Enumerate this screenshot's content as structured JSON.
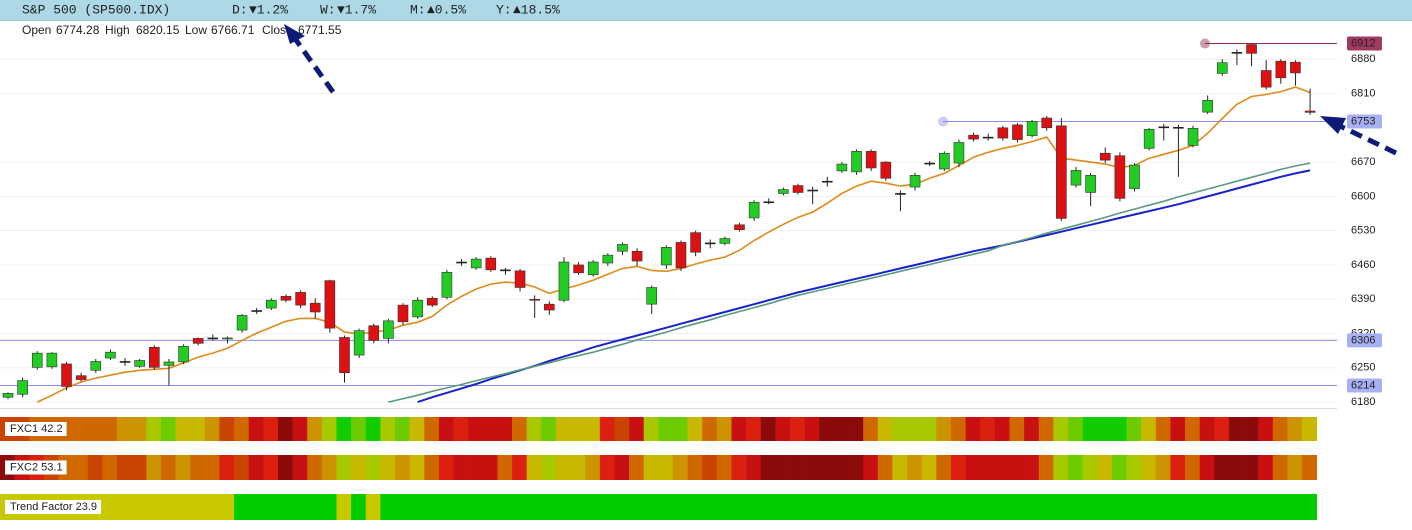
{
  "header": {
    "title": "S&P 500 (SP500.IDX)",
    "changes": [
      {
        "label": "D:",
        "value": "▼1.2%",
        "color": "#c00000"
      },
      {
        "label": "W:",
        "value": "▼1.7%",
        "color": "#c00000"
      },
      {
        "label": "M:",
        "value": "▲0.5%",
        "color": "#008a00"
      },
      {
        "label": "Y:",
        "value": "▲18.5%",
        "color": "#008a00"
      }
    ]
  },
  "ohlc": [
    {
      "label": "Open",
      "value": 6774.28
    },
    {
      "label": "High",
      "value": 6820.15
    },
    {
      "label": "Low",
      "value": 6766.71
    },
    {
      "label": "Close",
      "value": 6771.55
    }
  ],
  "chart_data": {
    "type": "candlestick",
    "ylim": [
      6168,
      6956
    ],
    "yticks": [
      6180,
      6250,
      6320,
      6390,
      6460,
      6530,
      6600,
      6670,
      6810,
      6880
    ],
    "grid": true,
    "up_color": "#22cc22",
    "down_color": "#dd1111",
    "open": [
      6190,
      6196,
      6251,
      6252,
      6258,
      6234,
      6245,
      6270,
      6262,
      6253,
      6292,
      6255,
      6262,
      6310,
      6310,
      6309,
      6327,
      6366,
      6372,
      6396,
      6404,
      6382,
      6428,
      6312,
      6276,
      6336,
      6310,
      6378,
      6354,
      6392,
      6394,
      6465,
      6454,
      6474,
      6450,
      6448,
      6390,
      6380,
      6388,
      6460,
      6440,
      6464,
      6488,
      6488,
      6380,
      6460,
      6506,
      6526,
      6504,
      6504,
      6542,
      6556,
      6588,
      6606,
      6622,
      6612,
      6630,
      6652,
      6650,
      6692,
      6670,
      6606,
      6619,
      6667,
      6656,
      6668,
      6725,
      6720,
      6740,
      6746,
      6724,
      6760,
      6744,
      6623,
      6608,
      6688,
      6683,
      6616,
      6698,
      6741,
      6741,
      6704,
      6772,
      6851,
      6893,
      6910,
      6857,
      6876,
      6874,
      6774.28
    ],
    "high": [
      6200,
      6230,
      6284,
      6282,
      6262,
      6240,
      6268,
      6288,
      6270,
      6268,
      6296,
      6268,
      6298,
      6312,
      6318,
      6314,
      6360,
      6372,
      6392,
      6400,
      6408,
      6392,
      6430,
      6316,
      6330,
      6340,
      6350,
      6382,
      6394,
      6396,
      6450,
      6472,
      6476,
      6478,
      6454,
      6452,
      6398,
      6386,
      6476,
      6466,
      6470,
      6484,
      6506,
      6494,
      6418,
      6500,
      6510,
      6530,
      6512,
      6518,
      6546,
      6592,
      6596,
      6618,
      6626,
      6620,
      6640,
      6670,
      6696,
      6696,
      6672,
      6612,
      6648,
      6672,
      6692,
      6716,
      6730,
      6728,
      6744,
      6750,
      6756,
      6764,
      6760,
      6660,
      6648,
      6700,
      6690,
      6668,
      6740,
      6748,
      6746,
      6744,
      6806,
      6880,
      6900,
      6912,
      6878,
      6880,
      6878,
      6820.15
    ],
    "low": [
      6186,
      6190,
      6246,
      6248,
      6204,
      6222,
      6240,
      6266,
      6254,
      6250,
      6246,
      6214,
      6258,
      6296,
      6306,
      6300,
      6322,
      6360,
      6368,
      6384,
      6372,
      6350,
      6322,
      6220,
      6270,
      6300,
      6300,
      6338,
      6350,
      6374,
      6390,
      6458,
      6450,
      6446,
      6440,
      6406,
      6352,
      6358,
      6384,
      6440,
      6436,
      6458,
      6480,
      6458,
      6360,
      6452,
      6448,
      6478,
      6494,
      6500,
      6528,
      6550,
      6584,
      6602,
      6604,
      6584,
      6620,
      6648,
      6644,
      6652,
      6632,
      6570,
      6612,
      6662,
      6652,
      6660,
      6712,
      6714,
      6714,
      6710,
      6720,
      6734,
      6550,
      6618,
      6580,
      6668,
      6590,
      6610,
      6694,
      6714,
      6640,
      6700,
      6768,
      6846,
      6868,
      6866,
      6818,
      6830,
      6826,
      6766.71
    ],
    "close": [
      6198,
      6224,
      6280,
      6280,
      6212,
      6226,
      6263,
      6282,
      6263,
      6265,
      6251,
      6262,
      6294,
      6300,
      6311,
      6311,
      6357,
      6367,
      6388,
      6388,
      6378,
      6364,
      6331,
      6240,
      6326,
      6306,
      6346,
      6344,
      6388,
      6378,
      6445,
      6466,
      6472,
      6450,
      6449,
      6414,
      6388,
      6368,
      6466,
      6444,
      6466,
      6480,
      6502,
      6468,
      6414,
      6496,
      6454,
      6486,
      6505,
      6514,
      6532,
      6588,
      6589,
      6614,
      6608,
      6613,
      6631,
      6666,
      6692,
      6658,
      6637,
      6605,
      6643,
      6668,
      6688,
      6710,
      6717,
      6721,
      6719,
      6716,
      6753,
      6740,
      6555,
      6653,
      6643,
      6674,
      6596,
      6664,
      6737,
      6742,
      6740,
      6739,
      6796,
      6873,
      6894,
      6892,
      6823,
      6842,
      6852,
      6771.55
    ],
    "lines": [
      {
        "color": "#e08a1a",
        "values": [
          null,
          null,
          6180,
          6194,
          6209,
          6221,
          6229,
          6235,
          6241,
          6245,
          6247,
          6249,
          6260,
          6272,
          6280,
          6290,
          6306,
          6321,
          6333,
          6345,
          6351,
          6351,
          6343,
          6323,
          6319,
          6323,
          6327,
          6337,
          6343,
          6355,
          6378,
          6396,
          6411,
          6421,
          6425,
          6423,
          6415,
          6402,
          6411,
          6419,
          6429,
          6441,
          6453,
          6457,
          6449,
          6447,
          6453,
          6462,
          6470,
          6476,
          6490,
          6510,
          6527,
          6543,
          6557,
          6568,
          6586,
          6606,
          6621,
          6631,
          6627,
          6621,
          6625,
          6637,
          6647,
          6663,
          6680,
          6690,
          6698,
          6704,
          6712,
          6721,
          6678,
          6674,
          6670,
          6666,
          6659,
          6663,
          6678,
          6686,
          6694,
          6704,
          6729,
          6759,
          6788,
          6804,
          6808,
          6814,
          6823,
          6812
        ]
      },
      {
        "color": "#1a22cc",
        "values": [
          null,
          null,
          null,
          null,
          null,
          null,
          null,
          null,
          null,
          null,
          null,
          null,
          null,
          null,
          null,
          null,
          null,
          null,
          null,
          null,
          null,
          null,
          null,
          null,
          null,
          null,
          null,
          null,
          6180,
          6190,
          6199,
          6208,
          6217,
          6227,
          6236,
          6245,
          6254,
          6264,
          6273,
          6282,
          6292,
          6300,
          6308,
          6316,
          6324,
          6332,
          6340,
          6348,
          6356,
          6364,
          6372,
          6380,
          6388,
          6396,
          6404,
          6411,
          6418,
          6425,
          6432,
          6439,
          6446,
          6453,
          6460,
          6467,
          6474,
          6481,
          6488,
          6494,
          6500,
          6507,
          6514,
          6521,
          6528,
          6535,
          6542,
          6549,
          6556,
          6563,
          6570,
          6577,
          6584,
          6592,
          6600,
          6608,
          6616,
          6624,
          6632,
          6640,
          6647,
          6653
        ]
      },
      {
        "color": "#5a9a80",
        "values": [
          null,
          null,
          null,
          null,
          null,
          null,
          null,
          null,
          null,
          null,
          null,
          null,
          null,
          null,
          null,
          null,
          null,
          null,
          null,
          null,
          null,
          null,
          null,
          null,
          null,
          null,
          6180,
          6187,
          6194,
          6202,
          6209,
          6216,
          6224,
          6231,
          6238,
          6246,
          6253,
          6260,
          6268,
          6275,
          6282,
          6290,
          6298,
          6307,
          6315,
          6323,
          6332,
          6340,
          6348,
          6357,
          6365,
          6373,
          6381,
          6390,
          6398,
          6405,
          6412,
          6419,
          6426,
          6433,
          6440,
          6447,
          6454,
          6461,
          6468,
          6475,
          6482,
          6489,
          6500,
          6508,
          6516,
          6525,
          6533,
          6541,
          6549,
          6557,
          6566,
          6574,
          6582,
          6590,
          6599,
          6607,
          6615,
          6623,
          6631,
          6639,
          6647,
          6655,
          6662,
          6668
        ]
      }
    ],
    "levels": [
      {
        "value": 6912,
        "color": "#8c2a4a",
        "label_color": "#a03a60",
        "text_color": "#ffffff"
      },
      {
        "value": 6753,
        "color": "#8c8cf0",
        "label_color": "#a8b0f4",
        "text_color": "#1a1a60"
      },
      {
        "value": 6306,
        "color": "#8c8cf0",
        "label_color": "#a8b0f4",
        "text_color": "#1a1a60"
      },
      {
        "value": 6214,
        "color": "#8c8cf0",
        "label_color": "#a8b0f4",
        "text_color": "#1a1a60"
      }
    ],
    "heat_rows": [
      {
        "label": "FXC1 42.2",
        "colors": [
          "#c84400",
          "#c84400",
          "#d06800",
          "#d06800",
          "#d06800",
          "#d06800",
          "#d06800",
          "#d06800",
          "#cc9400",
          "#cc9400",
          "#a8c800",
          "#6ccc00",
          "#c8b800",
          "#c8b800",
          "#cc9400",
          "#c84400",
          "#d06800",
          "#c81010",
          "#dc2010",
          "#8b0a0a",
          "#c81010",
          "#cc9400",
          "#a8c800",
          "#10cc00",
          "#6ccc00",
          "#10cc00",
          "#a8c800",
          "#6ccc00",
          "#c8b800",
          "#d06800",
          "#c81010",
          "#dc2010",
          "#c81010",
          "#c81010",
          "#c81010",
          "#d06800",
          "#a8c800",
          "#6ccc00",
          "#c8b800",
          "#c8b800",
          "#c8b800",
          "#dc2010",
          "#c84400",
          "#c81010",
          "#a8c800",
          "#6ccc00",
          "#6ccc00",
          "#c8b800",
          "#d06800",
          "#cc9400",
          "#c81010",
          "#dc2010",
          "#8b0a0a",
          "#c81010",
          "#dc2010",
          "#c81010",
          "#8b0a0a",
          "#8b0a0a",
          "#8b0a0a",
          "#d06800",
          "#c8b800",
          "#a8c800",
          "#a8c800",
          "#a8c800",
          "#cc9400",
          "#d06800",
          "#c81010",
          "#dc2010",
          "#c81010",
          "#d06800",
          "#c81010",
          "#d06800",
          "#a8c800",
          "#6ccc00",
          "#10cc00",
          "#10cc00",
          "#10cc00",
          "#6ccc00",
          "#c8b800",
          "#d06800",
          "#c81010",
          "#d06800",
          "#c81010",
          "#dc2010",
          "#8b0a0a",
          "#8b0a0a",
          "#c81010",
          "#d06800",
          "#cc9400",
          "#c8b800"
        ]
      },
      {
        "label": "FXC2 53.1",
        "colors": [
          "#8b0a0a",
          "#c81010",
          "#dc2010",
          "#c84400",
          "#d06800",
          "#d06800",
          "#c84400",
          "#d06800",
          "#c84400",
          "#c84400",
          "#cc9400",
          "#d06800",
          "#cc9400",
          "#d06800",
          "#d06800",
          "#dc2010",
          "#c84400",
          "#c81010",
          "#dc2010",
          "#8b0a0a",
          "#c81010",
          "#d06800",
          "#cc9400",
          "#a8c800",
          "#c8b800",
          "#a8c800",
          "#c8b800",
          "#cc9400",
          "#c8b800",
          "#d06800",
          "#dc2010",
          "#c81010",
          "#c81010",
          "#c81010",
          "#d06800",
          "#dc2010",
          "#c8b800",
          "#a8c800",
          "#c8b800",
          "#c8b800",
          "#cc9400",
          "#dc2010",
          "#c81010",
          "#d06800",
          "#c8b800",
          "#c8b800",
          "#cc9400",
          "#d06800",
          "#c84400",
          "#d06800",
          "#dc2010",
          "#c81010",
          "#8b0a0a",
          "#8b0a0a",
          "#8b0a0a",
          "#8b0a0a",
          "#8b0a0a",
          "#8b0a0a",
          "#8b0a0a",
          "#c81010",
          "#d06800",
          "#c8b800",
          "#cc9400",
          "#c8b800",
          "#d06800",
          "#dc2010",
          "#c81010",
          "#c81010",
          "#c81010",
          "#c81010",
          "#c81010",
          "#d06800",
          "#a8c800",
          "#6ccc00",
          "#a8c800",
          "#c8b800",
          "#6ccc00",
          "#a8c800",
          "#c8b800",
          "#cc9400",
          "#dc2010",
          "#d06800",
          "#c81010",
          "#8b0a0a",
          "#8b0a0a",
          "#8b0a0a",
          "#c81010",
          "#d06800",
          "#cc9400",
          "#d06800"
        ]
      },
      {
        "label": "Trend Factor 23.9",
        "colors": [
          "#c8c800",
          "#c8c800",
          "#c8c800",
          "#c8c800",
          "#c8c800",
          "#c8c800",
          "#c8c800",
          "#c8c800",
          "#c8c800",
          "#c8c800",
          "#c8c800",
          "#c8c800",
          "#c8c800",
          "#c8c800",
          "#c8c800",
          "#c8c800",
          "#00cc00",
          "#00cc00",
          "#00cc00",
          "#00cc00",
          "#00cc00",
          "#00cc00",
          "#00cc00",
          "#c8c800",
          "#00cc00",
          "#c8c800",
          "#00cc00",
          "#00cc00",
          "#00cc00",
          "#00cc00",
          "#00cc00",
          "#00cc00",
          "#00cc00",
          "#00cc00",
          "#00cc00",
          "#00cc00",
          "#00cc00",
          "#00cc00",
          "#00cc00",
          "#00cc00",
          "#00cc00",
          "#00cc00",
          "#00cc00",
          "#00cc00",
          "#00cc00",
          "#00cc00",
          "#00cc00",
          "#00cc00",
          "#00cc00",
          "#00cc00",
          "#00cc00",
          "#00cc00",
          "#00cc00",
          "#00cc00",
          "#00cc00",
          "#00cc00",
          "#00cc00",
          "#00cc00",
          "#00cc00",
          "#00cc00",
          "#00cc00",
          "#00cc00",
          "#00cc00",
          "#00cc00",
          "#00cc00",
          "#00cc00",
          "#00cc00",
          "#00cc00",
          "#00cc00",
          "#00cc00",
          "#00cc00",
          "#00cc00",
          "#00cc00",
          "#00cc00",
          "#00cc00",
          "#00cc00",
          "#00cc00",
          "#00cc00",
          "#00cc00",
          "#00cc00",
          "#00cc00",
          "#00cc00",
          "#00cc00",
          "#00cc00",
          "#00cc00",
          "#00cc00",
          "#00cc00",
          "#00cc00",
          "#00cc00",
          "#00cc00"
        ]
      }
    ]
  }
}
